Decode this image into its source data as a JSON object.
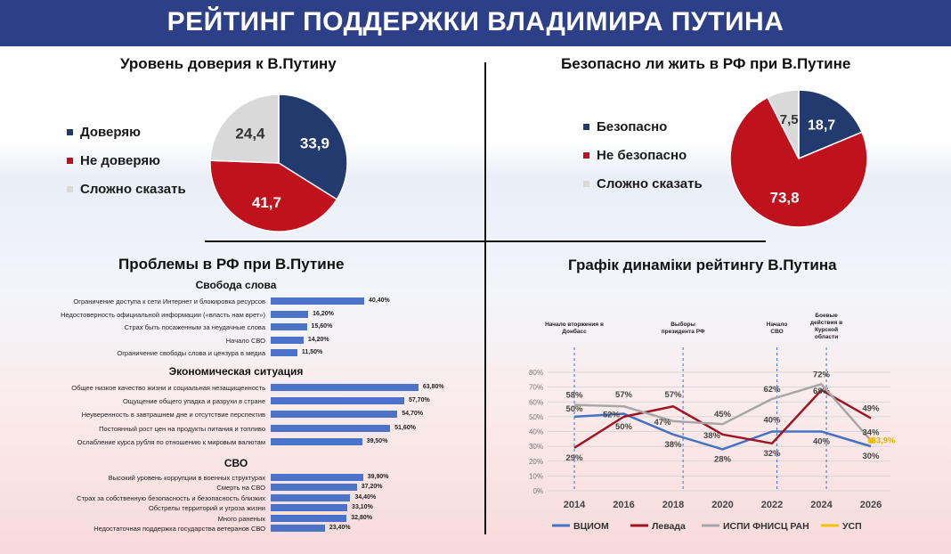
{
  "header": {
    "title": "РЕЙТИНГ ПОДДЕРЖКИ ВЛАДИМИРА ПУТИНА"
  },
  "colors": {
    "navy": "#233a6e",
    "red": "#c0121d",
    "gray": "#d9d9d9",
    "bar": "#4a73c9",
    "vciom": "#4472c4",
    "levada": "#a01422",
    "ispi": "#a6a6a6",
    "usp": "#f2c200"
  },
  "chart_data": [
    {
      "type": "pie",
      "title": "Уровень доверия к В.Путину",
      "categories": [
        "Доверяю",
        "Не доверяю",
        "Сложно сказать"
      ],
      "values": [
        33.9,
        41.7,
        24.4
      ],
      "value_labels": [
        "33,9",
        "41,7",
        "24,4"
      ],
      "legend": "left"
    },
    {
      "type": "pie",
      "title": "Безопасно ли жить в РФ при В.Путине",
      "categories": [
        "Безопасно",
        "Не безопасно",
        "Сложно сказать"
      ],
      "values": [
        18.7,
        73.8,
        7.5
      ],
      "value_labels": [
        "18,7",
        "73,8",
        "7,5"
      ],
      "legend": "left"
    },
    {
      "type": "bar",
      "title": "Проблемы в РФ при В.Путине",
      "groups": [
        {
          "name": "Свобода слова",
          "categories": [
            "Ограничение доступа к сети Интернет и блокировка ресурсов",
            "Недостоверность официальной информации («власть нам врет»)",
            "Страх быть посаженным за неудачные слова",
            "Начало СВО",
            "Ограничение свободы слова и цензура в медиа"
          ],
          "values": [
            40.4,
            16.2,
            15.6,
            14.2,
            11.5
          ],
          "value_labels": [
            "40,40%",
            "16,20%",
            "15,60%",
            "14,20%",
            "11,50%"
          ]
        },
        {
          "name": "Экономическая ситуация",
          "categories": [
            "Общее низкое качество жизни и социальная незащищенность",
            "Ощущение общего упадка и разрухи в стране",
            "Неуверенность в завтрашнем дне и отсутствие перспектив",
            "Постоянный рост цен на продукты питания и топливо",
            "Ослабление курса рубля по отношению к мировым валютам"
          ],
          "values": [
            63.8,
            57.7,
            54.7,
            51.6,
            39.5
          ],
          "value_labels": [
            "63,80%",
            "57,70%",
            "54,70%",
            "51,60%",
            "39,50%"
          ]
        },
        {
          "name": "СВО",
          "categories": [
            "Высокий уровень коррупции в военных структурах",
            "Смерть на СВО",
            "Страх за собственную безопасность и безопасность близких",
            "Обстрелы территорий и угроза жизни",
            "Много раненых",
            "Недостаточная поддержка государства ветеранов СВО"
          ],
          "values": [
            39.9,
            37.2,
            34.4,
            33.1,
            32.8,
            23.4
          ],
          "value_labels": [
            "39,90%",
            "37,20%",
            "34,40%",
            "33,10%",
            "32,80%",
            "23,40%"
          ]
        }
      ]
    },
    {
      "type": "line",
      "title": "Графік динаміки рейтингу В.Путина",
      "x_ticks": [
        "2014",
        "2016",
        "2018",
        "2020",
        "2022",
        "2024",
        "2026"
      ],
      "y_ticks": [
        "0%",
        "10%",
        "20%",
        "30%",
        "40%",
        "50%",
        "60%",
        "70%",
        "80%"
      ],
      "ylim": [
        0,
        80
      ],
      "series": [
        {
          "name": "ВЦИОМ",
          "x": [
            2014,
            2016,
            2018,
            2020,
            2022,
            2024,
            2026
          ],
          "y": [
            50,
            52,
            38,
            28,
            40,
            40,
            30
          ],
          "labels": [
            "50%",
            "52%",
            "38%",
            "28%",
            "40%",
            "40%",
            "30%"
          ]
        },
        {
          "name": "Левада",
          "x": [
            2014,
            2016,
            2018,
            2020,
            2022,
            2024,
            2026
          ],
          "y": [
            29,
            50,
            57,
            38,
            32,
            68,
            49
          ],
          "labels": [
            "29%",
            "50%",
            "57%",
            "38%",
            "32%",
            "68%",
            "49%"
          ]
        },
        {
          "name": "ИСПИ ФНИСЦ РАН",
          "x": [
            2014,
            2016,
            2018,
            2020,
            2022,
            2024,
            2026
          ],
          "y": [
            58,
            57,
            47,
            45,
            62,
            72,
            34
          ],
          "labels": [
            "58%",
            "57%",
            "47%",
            "45%",
            "62%",
            "72%",
            "34%"
          ]
        },
        {
          "name": "УСП",
          "x": [
            2026
          ],
          "y": [
            33.9
          ],
          "labels": [
            "33,9%"
          ]
        }
      ],
      "events": [
        {
          "x": 2014,
          "label": [
            "Начало вторжения в",
            "Донбасс"
          ]
        },
        {
          "x": 2018.4,
          "label": [
            "Выборы",
            "президента РФ"
          ]
        },
        {
          "x": 2022.2,
          "label": [
            "Начало",
            "СВО"
          ]
        },
        {
          "x": 2024.2,
          "label": [
            "Боевые",
            "действия в",
            "Курской",
            "области"
          ]
        }
      ],
      "legend": "bottom"
    }
  ]
}
